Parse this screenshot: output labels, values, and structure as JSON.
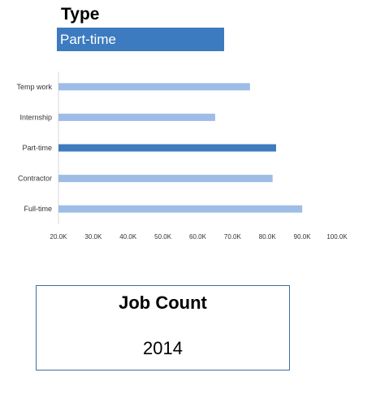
{
  "slicer": {
    "title": "Type",
    "selected": "Part-time"
  },
  "colors": {
    "bar": "#9ebde6",
    "bar_highlight": "#3f7bbf",
    "slicer_bg": "#3c7bbf",
    "card_border": "#3c6f9f"
  },
  "chart_data": {
    "type": "bar",
    "orientation": "horizontal",
    "categories": [
      "Temp work",
      "Internship",
      "Part-time",
      "Contractor",
      "Full-time"
    ],
    "values": [
      75000,
      65000,
      82500,
      81500,
      90000
    ],
    "highlight": "Part-time",
    "xlim": [
      20000,
      100000
    ],
    "xticks": [
      "20.0K",
      "30.0K",
      "40.0K",
      "50.0K",
      "60.0K",
      "70.0K",
      "80.0K",
      "90.0K",
      "100.0K"
    ],
    "grid": false,
    "title": "",
    "xlabel": "",
    "ylabel": ""
  },
  "card": {
    "title": "Job Count",
    "value": "2014"
  }
}
